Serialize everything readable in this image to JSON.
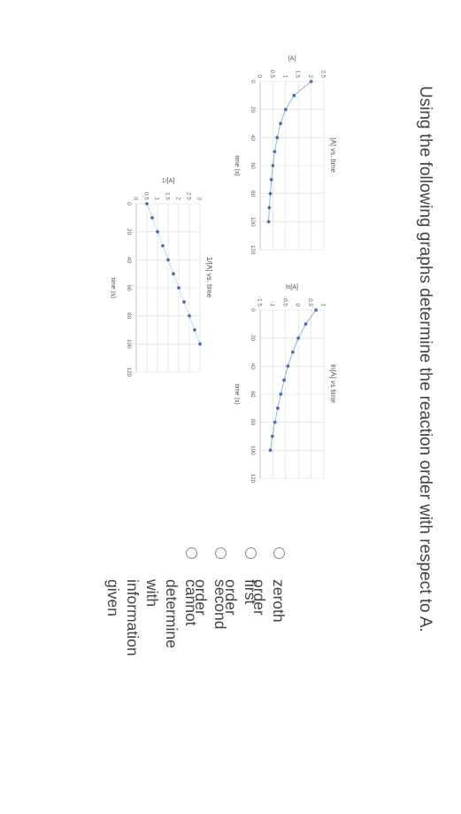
{
  "question": "Using the following graphs determine the reaction order with respect to A.",
  "chart_data": [
    {
      "type": "line",
      "title": "[A] vs. time",
      "xlabel": "time (s)",
      "ylabel": "[A]",
      "xlim": [
        0,
        120
      ],
      "ylim": [
        0,
        2.5
      ],
      "x_ticks": [
        "0",
        "20",
        "40",
        "60",
        "80",
        "100",
        "120"
      ],
      "y_ticks": [
        "0",
        "0.5",
        "1",
        "1.5",
        "2",
        "2.5"
      ],
      "x": [
        0,
        10,
        20,
        30,
        40,
        50,
        60,
        70,
        80,
        90,
        100
      ],
      "y": [
        2.0,
        1.33,
        1.0,
        0.8,
        0.67,
        0.57,
        0.5,
        0.44,
        0.4,
        0.36,
        0.33
      ],
      "grid": true,
      "line_style": "solid",
      "color": "#4472c4"
    },
    {
      "type": "line",
      "title": "ln[A] vs time",
      "xlabel": "time (s)",
      "ylabel": "ln[A]",
      "xlim": [
        0,
        120
      ],
      "ylim": [
        -1.5,
        1
      ],
      "x_ticks": [
        "0",
        "20",
        "40",
        "60",
        "80",
        "100",
        "120"
      ],
      "y_ticks": [
        "-1.5",
        "-1",
        "-0.5",
        "0",
        "0.5",
        "1"
      ],
      "x": [
        0,
        10,
        20,
        30,
        40,
        50,
        60,
        70,
        80,
        90,
        100
      ],
      "y": [
        0.69,
        0.29,
        0.0,
        -0.22,
        -0.41,
        -0.56,
        -0.69,
        -0.81,
        -0.92,
        -1.02,
        -1.1
      ],
      "grid": true,
      "line_style": "solid",
      "color": "#4472c4"
    },
    {
      "type": "line",
      "title": "1/[A] vs. time",
      "xlabel": "time (s)",
      "ylabel": "1/[A]",
      "xlim": [
        0,
        120
      ],
      "ylim": [
        0,
        3
      ],
      "x_ticks": [
        "0",
        "20",
        "40",
        "60",
        "80",
        "100",
        "120"
      ],
      "y_ticks": [
        "0",
        "0.5",
        "1",
        "1.5",
        "2",
        "2.5",
        "3"
      ],
      "x": [
        0,
        10,
        20,
        30,
        40,
        50,
        60,
        70,
        80,
        90,
        100
      ],
      "y": [
        0.5,
        0.75,
        1.0,
        1.25,
        1.5,
        1.75,
        2.0,
        2.25,
        2.5,
        2.75,
        3.0
      ],
      "grid": true,
      "line_style": "dotted",
      "color": "#4472c4"
    }
  ],
  "options": [
    {
      "label": "zeroth order"
    },
    {
      "label": "first order"
    },
    {
      "label": "second order"
    },
    {
      "label": "cannot determine with\ninformation given"
    }
  ]
}
